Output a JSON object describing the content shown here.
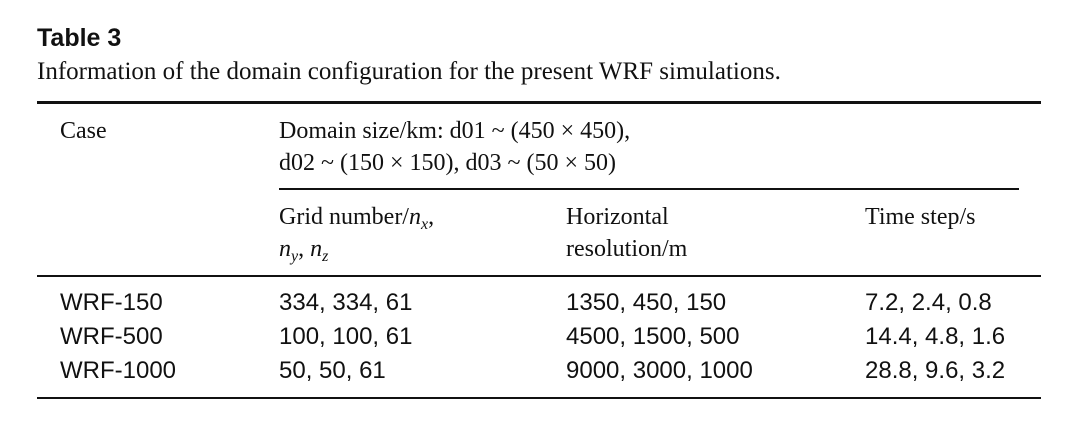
{
  "table": {
    "label": "Table 3",
    "caption": "Information of the domain configuration for the present WRF simulations.",
    "header": {
      "case": "Case",
      "domain_line1": "Domain size/km: d01 ~ (450 × 450),",
      "domain_line2": "d02 ~ (150 × 150), d03 ~ (50 × 50)",
      "grid_number": {
        "prefix": "Grid number/",
        "n": "n",
        "x": "x",
        "comma": ",",
        "ny_n": "n",
        "y": "y",
        "sep": ", ",
        "nz_n": "n",
        "z": "z"
      },
      "horizontal_line1": "Horizontal",
      "horizontal_line2": "resolution/m",
      "time_step": "Time step/s"
    },
    "rows": [
      {
        "case": "WRF-150",
        "grid": "334, 334, 61",
        "resolution": "1350, 450, 150",
        "time_step": "7.2, 2.4, 0.8"
      },
      {
        "case": "WRF-500",
        "grid": "100, 100, 61",
        "resolution": "4500, 1500, 500",
        "time_step": "14.4, 4.8, 1.6"
      },
      {
        "case": "WRF-1000",
        "grid": "50, 50, 61",
        "resolution": "9000, 3000, 1000",
        "time_step": "28.8, 9.6, 3.2"
      }
    ]
  }
}
